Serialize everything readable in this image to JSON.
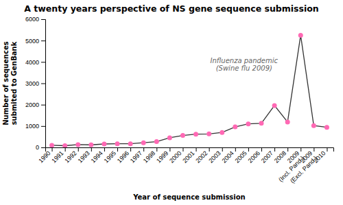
{
  "chart_data": {
    "type": "line",
    "title": "A twenty years perspective of NS gene sequence submission",
    "xlabel": "Year of sequence submission",
    "ylabel": "Number of sequences\nsubmited to GenBank",
    "categories": [
      "1990",
      "1991",
      "1992",
      "1993",
      "1994",
      "1995",
      "1996",
      "1997",
      "1998",
      "1999",
      "2000",
      "2001",
      "2002",
      "2003",
      "2004",
      "2005",
      "2006",
      "2007",
      "2008",
      "2009\n(Incl. Pand.)",
      "2009\n(Excl. Pand.)",
      "2010"
    ],
    "values": [
      100,
      80,
      130,
      120,
      160,
      170,
      170,
      220,
      270,
      450,
      560,
      620,
      630,
      700,
      960,
      1100,
      1130,
      1960,
      1190,
      5250,
      1020,
      940
    ],
    "color": "#FF69B4",
    "marker": "circle",
    "ylim": [
      0,
      6000
    ],
    "yticks": [
      0,
      1000,
      2000,
      3000,
      4000,
      5000,
      6000
    ],
    "annotation": "Influenza pandemic\n(Swine flu 2009)"
  }
}
